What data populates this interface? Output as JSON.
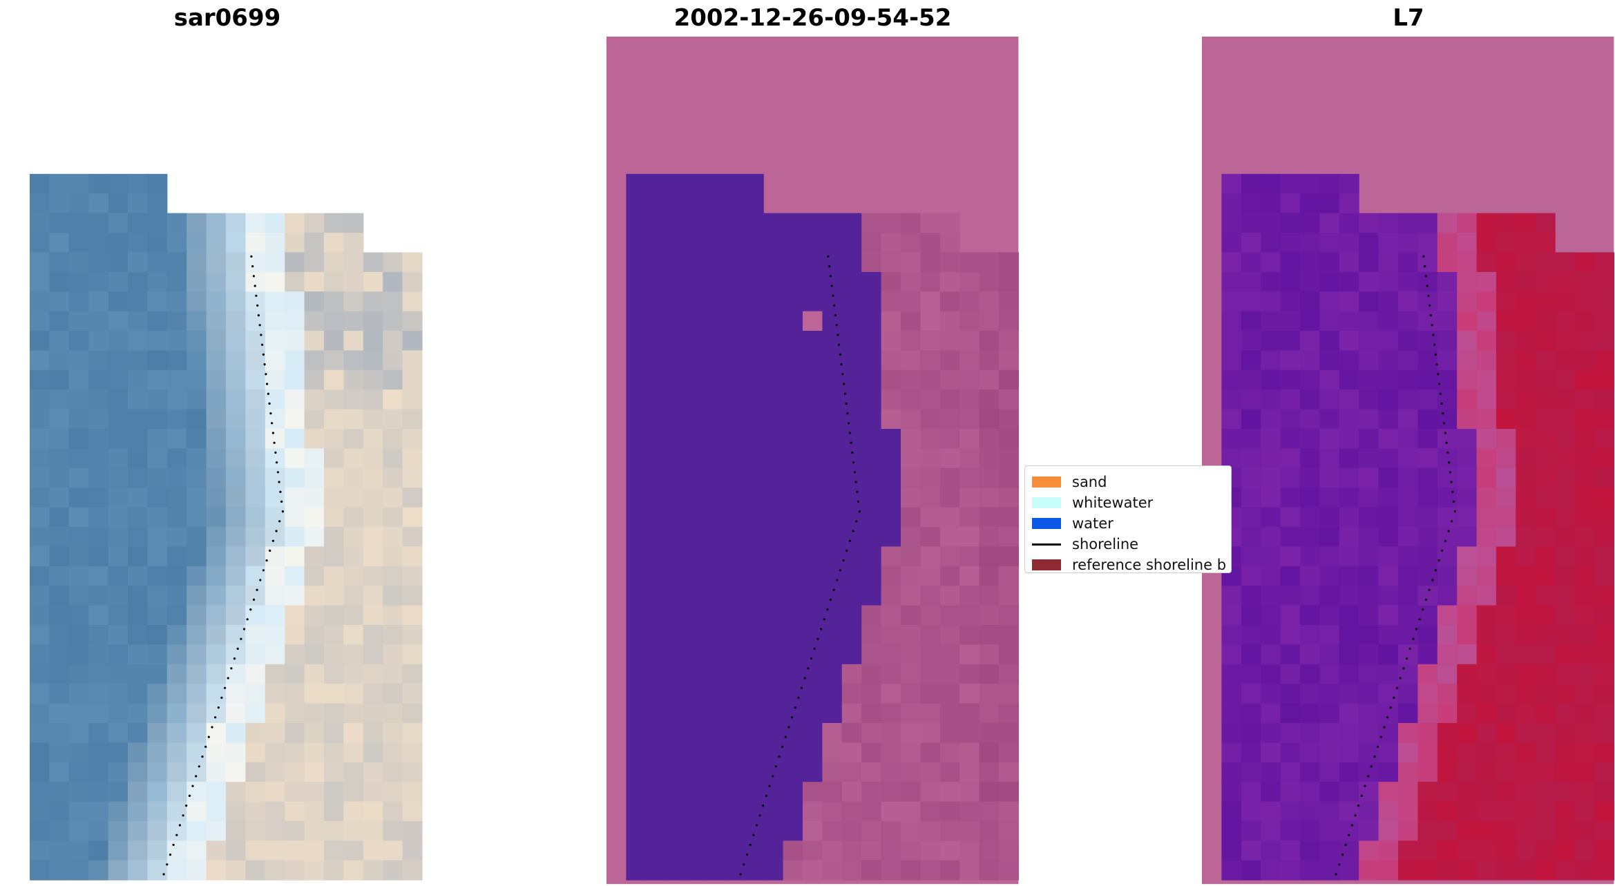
{
  "panels": [
    {
      "title": "sar0699"
    },
    {
      "title": "2002-12-26-09-54-52"
    },
    {
      "title": "L7"
    }
  ],
  "legend": {
    "items": [
      {
        "label": "sand",
        "color": "#f68d3b"
      },
      {
        "label": "whitewater",
        "color": "#c8fdfb"
      },
      {
        "label": "water",
        "color": "#0b57e8"
      },
      {
        "label": "shoreline",
        "color": "#000000"
      },
      {
        "label": "reference shoreline b",
        "color": "#8e2a33"
      }
    ]
  },
  "colors": {
    "nodata_pink": "#bc6698",
    "water_class": "#54239a",
    "l7_purple": "#7a23a8",
    "l7_red": "#c2163e"
  }
}
